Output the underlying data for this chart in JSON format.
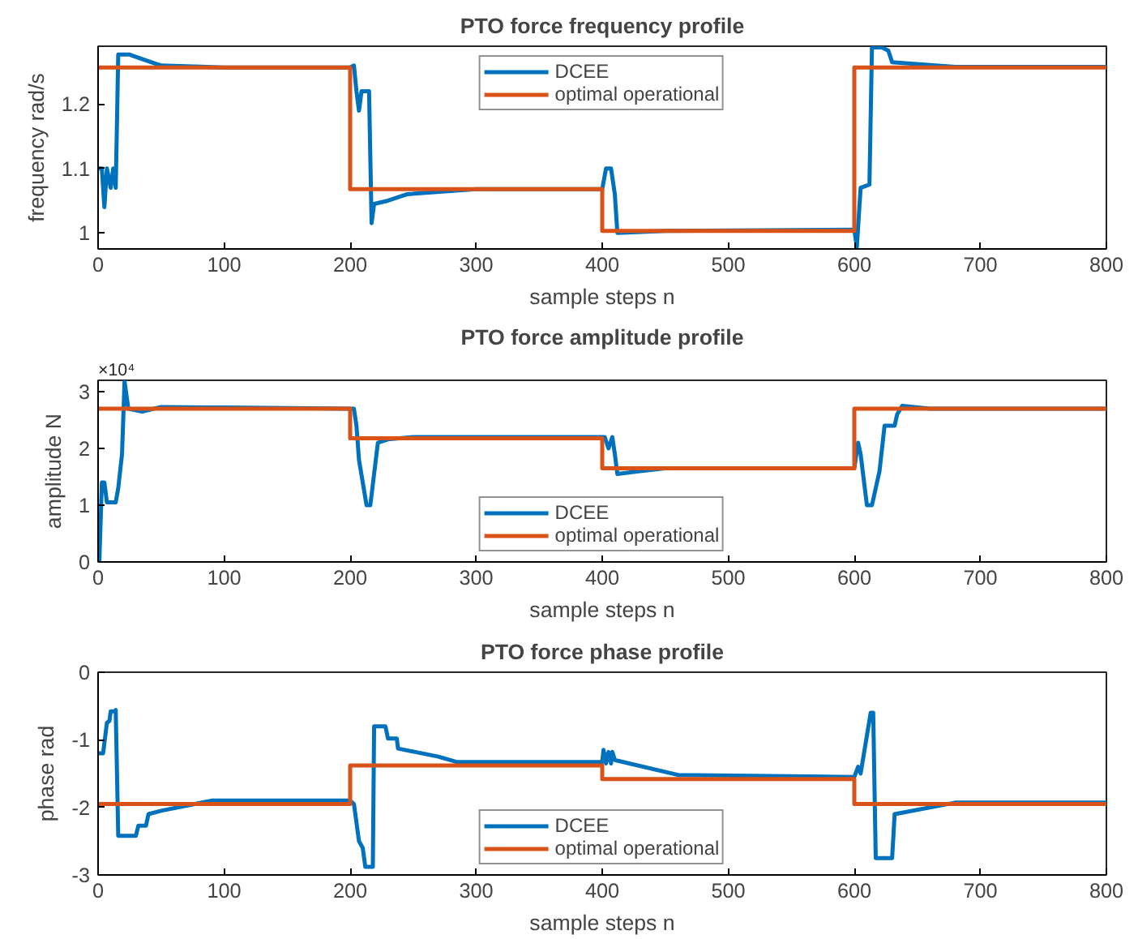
{
  "chart_data": [
    {
      "type": "line",
      "title": "PTO force frequency profile",
      "xlabel": "sample steps n",
      "ylabel": "frequency rad/s",
      "xlim": [
        0,
        800
      ],
      "xticks": [
        0,
        100,
        200,
        300,
        400,
        500,
        600,
        700,
        800
      ],
      "ylim": [
        0.975,
        1.29
      ],
      "yticks": [
        1,
        1.1,
        1.2
      ],
      "grid": false,
      "legend": "top",
      "line_style": "solid",
      "series": [
        {
          "name": "DCEE",
          "color": "#0072bd",
          "x": [
            0,
            3,
            5,
            7,
            10,
            12,
            14,
            16,
            25,
            35,
            50,
            100,
            200,
            203,
            205,
            207,
            209,
            215,
            217,
            219,
            230,
            245,
            300,
            400,
            403,
            407,
            410,
            412,
            450,
            600,
            602,
            605,
            612,
            614,
            622,
            627,
            630,
            680,
            800
          ],
          "values": [
            1.1,
            1.1,
            1.04,
            1.1,
            1.07,
            1.1,
            1.07,
            1.277,
            1.277,
            1.27,
            1.26,
            1.257,
            1.257,
            1.26,
            1.22,
            1.19,
            1.22,
            1.22,
            1.015,
            1.045,
            1.05,
            1.06,
            1.068,
            1.068,
            1.1,
            1.1,
            1.06,
            1.0,
            1.003,
            1.005,
            0.978,
            1.07,
            1.075,
            1.288,
            1.288,
            1.283,
            1.265,
            1.258,
            1.258
          ]
        },
        {
          "name": "optimal operational",
          "color": "#d95319",
          "x": [
            0,
            200,
            200,
            400,
            400,
            600,
            600,
            800
          ],
          "values": [
            1.257,
            1.257,
            1.068,
            1.068,
            1.003,
            1.003,
            1.257,
            1.257
          ]
        }
      ]
    },
    {
      "type": "line",
      "title": "PTO force amplitude profile",
      "xlabel": "sample steps n",
      "ylabel": "amplitude N",
      "annotations": [
        "×10⁴"
      ],
      "xlim": [
        0,
        800
      ],
      "xticks": [
        0,
        100,
        200,
        300,
        400,
        500,
        600,
        700,
        800
      ],
      "ylim": [
        0,
        3.2
      ],
      "yticks": [
        0,
        1,
        2,
        3
      ],
      "grid": false,
      "legend": "bottom",
      "line_style": "solid",
      "series": [
        {
          "name": "DCEE",
          "color": "#0072bd",
          "x": [
            0,
            1,
            3,
            5,
            7,
            14,
            16,
            19,
            21,
            24,
            35,
            50,
            100,
            200,
            203,
            205,
            207,
            213,
            216,
            222,
            230,
            250,
            400,
            402,
            405,
            408,
            410,
            412,
            430,
            450,
            600,
            603,
            605,
            610,
            614,
            620,
            624,
            632,
            634,
            638,
            660,
            800
          ],
          "values": [
            0,
            0,
            1.4,
            1.4,
            1.05,
            1.05,
            1.3,
            1.9,
            3.18,
            2.7,
            2.65,
            2.73,
            2.72,
            2.7,
            2.7,
            2.4,
            1.8,
            1.0,
            1.0,
            2.1,
            2.16,
            2.2,
            2.2,
            2.2,
            2.0,
            2.2,
            1.9,
            1.55,
            1.6,
            1.65,
            1.65,
            2.1,
            1.9,
            1.0,
            1.0,
            1.6,
            2.4,
            2.4,
            2.6,
            2.75,
            2.7,
            2.7
          ]
        },
        {
          "name": "optimal operational",
          "color": "#d95319",
          "x": [
            0,
            200,
            200,
            400,
            400,
            600,
            600,
            800
          ],
          "values": [
            2.7,
            2.7,
            2.18,
            2.18,
            1.65,
            1.65,
            2.7,
            2.7
          ]
        }
      ]
    },
    {
      "type": "line",
      "title": "PTO force phase profile",
      "xlabel": "sample steps n",
      "ylabel": "phase rad",
      "xlim": [
        0,
        800
      ],
      "xticks": [
        0,
        100,
        200,
        300,
        400,
        500,
        600,
        700,
        800
      ],
      "ylim": [
        -3,
        0
      ],
      "yticks": [
        -3,
        -2,
        -1,
        0
      ],
      "grid": false,
      "legend": "bottom",
      "line_style": "solid",
      "series": [
        {
          "name": "DCEE",
          "color": "#0072bd",
          "x": [
            0,
            4,
            7,
            9,
            10,
            13,
            14,
            16,
            30,
            32,
            38,
            40,
            50,
            90,
            200,
            203,
            207,
            210,
            212,
            218,
            219,
            228,
            230,
            237,
            238,
            270,
            285,
            400,
            401,
            403,
            405,
            407,
            408,
            410,
            460,
            600,
            603,
            605,
            613,
            615,
            617,
            630,
            632,
            680,
            800
          ],
          "values": [
            -1.2,
            -1.2,
            -0.75,
            -0.72,
            -0.58,
            -0.58,
            -0.56,
            -2.42,
            -2.42,
            -2.27,
            -2.27,
            -2.1,
            -2.05,
            -1.9,
            -1.9,
            -1.95,
            -2.5,
            -2.6,
            -2.88,
            -2.88,
            -0.8,
            -0.8,
            -0.98,
            -0.98,
            -1.13,
            -1.25,
            -1.33,
            -1.33,
            -1.15,
            -1.35,
            -1.18,
            -1.35,
            -1.18,
            -1.3,
            -1.52,
            -1.55,
            -1.4,
            -1.5,
            -0.6,
            -0.6,
            -2.75,
            -2.75,
            -2.1,
            -1.93,
            -1.93
          ]
        },
        {
          "name": "optimal operational",
          "color": "#d95319",
          "x": [
            0,
            200,
            200,
            400,
            400,
            600,
            600,
            800
          ],
          "values": [
            -1.95,
            -1.95,
            -1.38,
            -1.38,
            -1.58,
            -1.58,
            -1.95,
            -1.95
          ]
        }
      ]
    }
  ]
}
